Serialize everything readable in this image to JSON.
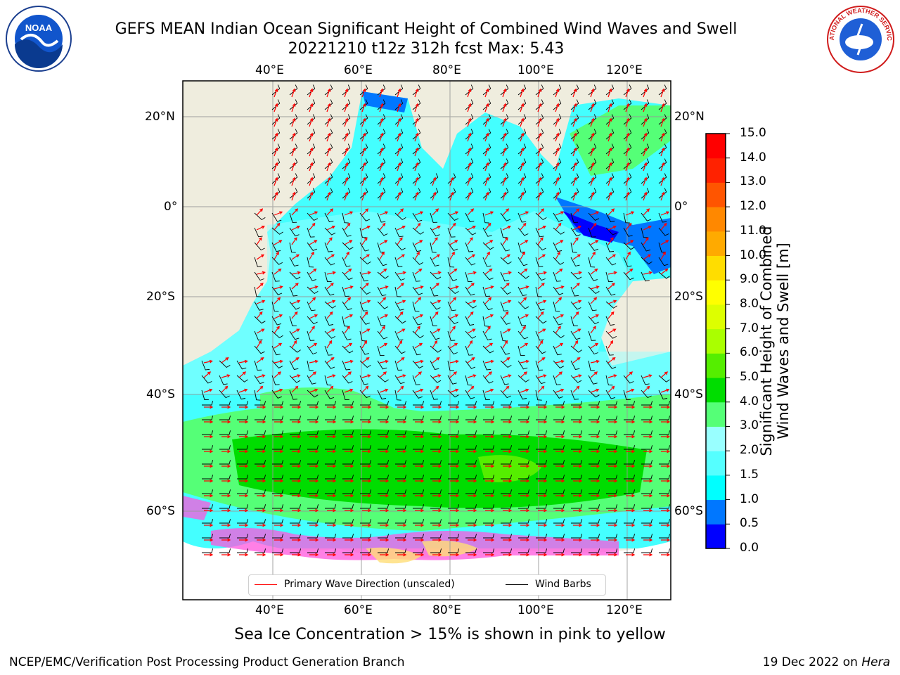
{
  "header": {
    "title_line1": "GEFS MEAN Indian Ocean Significant Height of Combined Wind Waves and Swell",
    "title_line2": "20221210 t12z 312h fcst   Max: 5.43"
  },
  "logos": {
    "left": "noaa-logo",
    "right": "nws-logo",
    "left_text": "NOAA",
    "right_text": "NATIONAL WEATHER SERVICE"
  },
  "map": {
    "lon_labels": [
      "40°E",
      "60°E",
      "80°E",
      "100°E",
      "120°E"
    ],
    "lat_labels": [
      "20°N",
      "0°",
      "20°S",
      "40°S",
      "60°S"
    ],
    "legend": {
      "wave_label": "Primary Wave Direction (unscaled)",
      "wind_label": "Wind Barbs",
      "wave_color": "#ff0000",
      "wind_color": "#000000"
    },
    "land_color": "#efedde",
    "ocean_color": "#44ffff"
  },
  "colorbar": {
    "ticks": [
      "0.0",
      "0.5",
      "1.0",
      "1.5",
      "2.0",
      "3.0",
      "4.0",
      "5.0",
      "6.0",
      "7.0",
      "8.0",
      "9.0",
      "10.0",
      "11.0",
      "12.0",
      "13.0",
      "14.0",
      "15.0"
    ],
    "colors": [
      "#0000ff",
      "#0077ff",
      "#00ffff",
      "#55ffff",
      "#99ffff",
      "#55ff77",
      "#00dd00",
      "#55ee00",
      "#aaff00",
      "#ddff00",
      "#ffff00",
      "#ffdd00",
      "#ffaa00",
      "#ff8800",
      "#ff5500",
      "#ff2200",
      "#ff0000"
    ],
    "axis_title_line1": "Significant Height of Combined",
    "axis_title_line2": "Wind Waves and Swell [m]"
  },
  "notes": {
    "ice": "Sea Ice Concentration > 15% is shown in pink to yellow",
    "footer_left": "NCEP/EMC/Verification Post Processing Product Generation Branch",
    "footer_right_prefix": "19 Dec 2022 on ",
    "footer_right_host": "Hera"
  }
}
